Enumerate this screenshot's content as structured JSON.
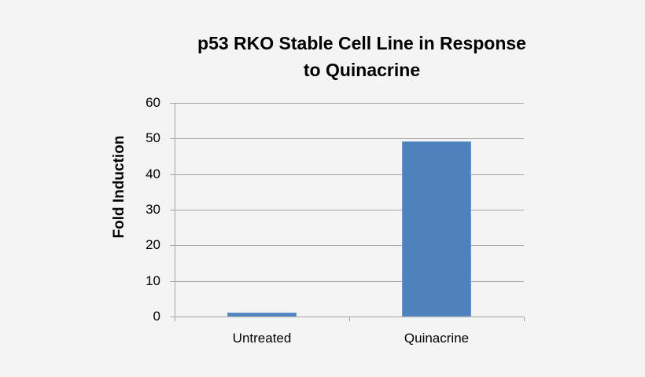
{
  "chart_data": {
    "type": "bar",
    "title": "p53 RKO Stable Cell Line in Response to Quinacrine",
    "title_lines": [
      "p53 RKO Stable Cell Line in Response",
      "to Quinacrine"
    ],
    "xlabel": "",
    "ylabel": "Fold Induction",
    "categories": [
      "Untreated",
      "Quinacrine"
    ],
    "values": [
      1.0,
      49.2
    ],
    "ylim": [
      0,
      60
    ],
    "yticks": [
      0,
      10,
      20,
      30,
      40,
      50,
      60
    ],
    "ytick_labels": [
      "0",
      "10",
      "20",
      "30",
      "40",
      "50",
      "60"
    ],
    "grid": true,
    "legend": null,
    "bar_color": "#4f81bd"
  }
}
